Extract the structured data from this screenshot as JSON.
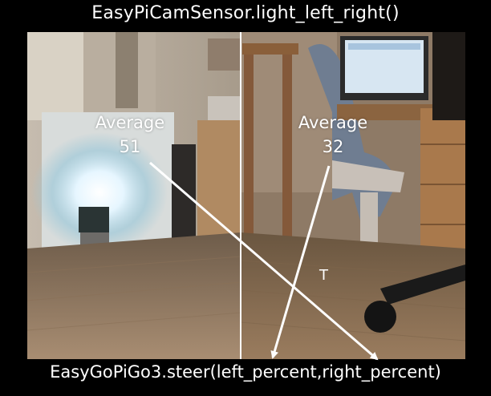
{
  "title": "EasyPiCamSensor.light_left_right()",
  "footer": "EasyGoPiGo3.steer(left_percent,right_percent)",
  "left_region": {
    "label": "Average",
    "value": "51"
  },
  "right_region": {
    "label": "Average",
    "value": "32"
  },
  "crossing_label": "T",
  "colors": {
    "background": "#000000",
    "text": "#ffffff",
    "arrow": "#ffffff",
    "divider": "#ffffff"
  },
  "icons": [
    "arrow-left-to-right-icon",
    "arrow-right-to-left-icon"
  ]
}
